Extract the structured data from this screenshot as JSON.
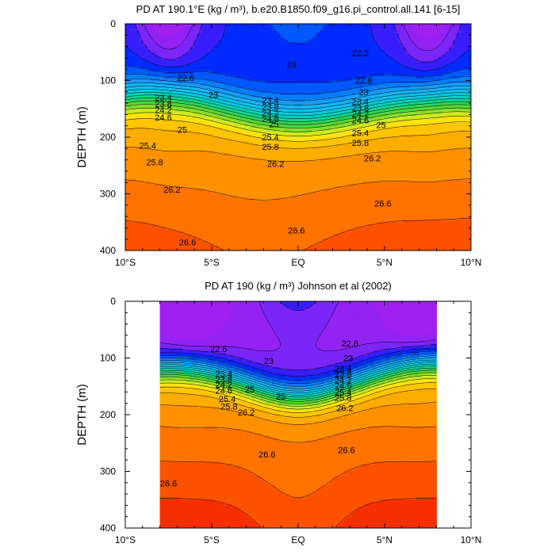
{
  "chart_data": [
    {
      "type": "contour",
      "title": "PD AT 190.1°E (kg / m³), b.e20.B1850.f09_g16.pi_control.all.141 [6-15]",
      "ylabel": "DEPTH (m)",
      "xlabel": "",
      "x_ticks": [
        "10°S",
        "5°S",
        "EQ",
        "5°N",
        "10°N"
      ],
      "y_ticks": [
        "0",
        "100",
        "200",
        "300",
        "400"
      ],
      "xlim": [
        -10,
        10
      ],
      "ylim": [
        400,
        0
      ],
      "x_data_range": [
        -10,
        10
      ],
      "level_step": 0.2,
      "contour_labels": [
        {
          "text": "22.6",
          "x": -6.5,
          "y": 95
        },
        {
          "text": "23",
          "x": -4.9,
          "y": 125
        },
        {
          "text": "23",
          "x": -0.4,
          "y": 72
        },
        {
          "text": "22.2",
          "x": 3.6,
          "y": 52
        },
        {
          "text": "22.6",
          "x": 3.8,
          "y": 100
        },
        {
          "text": "23",
          "x": 3.8,
          "y": 120
        },
        {
          "text": "23.4",
          "x": -7.8,
          "y": 130
        },
        {
          "text": "23.8",
          "x": -7.8,
          "y": 141
        },
        {
          "text": "24.2",
          "x": -7.8,
          "y": 152
        },
        {
          "text": "24.6",
          "x": -7.8,
          "y": 165
        },
        {
          "text": "23.4",
          "x": -1.6,
          "y": 135
        },
        {
          "text": "23.8",
          "x": -1.6,
          "y": 146
        },
        {
          "text": "24.2",
          "x": -1.6,
          "y": 157
        },
        {
          "text": "24.6",
          "x": -1.6,
          "y": 168
        },
        {
          "text": "23.4",
          "x": 3.6,
          "y": 137
        },
        {
          "text": "23.8",
          "x": 3.6,
          "y": 148
        },
        {
          "text": "24.2",
          "x": 3.6,
          "y": 159
        },
        {
          "text": "24.6",
          "x": 3.6,
          "y": 170
        },
        {
          "text": "25",
          "x": 4.8,
          "y": 178
        },
        {
          "text": "25",
          "x": -6.7,
          "y": 187
        },
        {
          "text": "25",
          "x": -1.4,
          "y": 177
        },
        {
          "text": "25.4",
          "x": -8.7,
          "y": 215
        },
        {
          "text": "25.4",
          "x": -1.6,
          "y": 200
        },
        {
          "text": "25.4",
          "x": 3.6,
          "y": 192
        },
        {
          "text": "25.8",
          "x": -8.3,
          "y": 244
        },
        {
          "text": "25.8",
          "x": -1.6,
          "y": 217
        },
        {
          "text": "25.8",
          "x": 3.6,
          "y": 210
        },
        {
          "text": "26.2",
          "x": -1.3,
          "y": 247
        },
        {
          "text": "26.2",
          "x": 4.3,
          "y": 237
        },
        {
          "text": "26.2",
          "x": -7.3,
          "y": 292
        },
        {
          "text": "26.6",
          "x": 4.9,
          "y": 317
        },
        {
          "text": "26.6",
          "x": -0.1,
          "y": 364
        },
        {
          "text": "26.6",
          "x": -6.4,
          "y": 385
        }
      ]
    },
    {
      "type": "contour",
      "title": "PD AT 190 (kg / m³) Johnson et al (2002)",
      "ylabel": "DEPTH (m)",
      "xlabel": "",
      "x_ticks": [
        "10°S",
        "5°S",
        "EQ",
        "5°N",
        "10°N"
      ],
      "y_ticks": [
        "0",
        "100",
        "200",
        "300",
        "400"
      ],
      "xlim": [
        -10,
        10
      ],
      "ylim": [
        400,
        0
      ],
      "x_data_range": [
        -8,
        8
      ],
      "level_step": 0.2,
      "contour_labels": [
        {
          "text": "22.6",
          "x": -4.6,
          "y": 84
        },
        {
          "text": "23",
          "x": -1.7,
          "y": 105
        },
        {
          "text": "22.6",
          "x": 3.0,
          "y": 74
        },
        {
          "text": "23",
          "x": 2.9,
          "y": 100
        },
        {
          "text": "23.4",
          "x": -4.3,
          "y": 128
        },
        {
          "text": "23.8",
          "x": -4.3,
          "y": 138
        },
        {
          "text": "24.2",
          "x": -4.3,
          "y": 147
        },
        {
          "text": "24.6",
          "x": -4.3,
          "y": 157
        },
        {
          "text": "25",
          "x": -2.8,
          "y": 155
        },
        {
          "text": "25",
          "x": -1.0,
          "y": 168
        },
        {
          "text": "23.4",
          "x": 2.6,
          "y": 119
        },
        {
          "text": "23.8",
          "x": 2.6,
          "y": 129
        },
        {
          "text": "24.2",
          "x": 2.6,
          "y": 139
        },
        {
          "text": "24.6",
          "x": 2.6,
          "y": 149
        },
        {
          "text": "25.4",
          "x": -4.1,
          "y": 172
        },
        {
          "text": "25.8",
          "x": -4.0,
          "y": 185
        },
        {
          "text": "26.2",
          "x": -3.0,
          "y": 196
        },
        {
          "text": "25.4",
          "x": 2.6,
          "y": 160
        },
        {
          "text": "25.8",
          "x": 2.6,
          "y": 170
        },
        {
          "text": "26.2",
          "x": 2.7,
          "y": 188
        },
        {
          "text": "26.6",
          "x": -1.8,
          "y": 270
        },
        {
          "text": "26.6",
          "x": 2.8,
          "y": 262
        },
        {
          "text": "26.6",
          "x": -7.5,
          "y": 321
        }
      ]
    }
  ]
}
